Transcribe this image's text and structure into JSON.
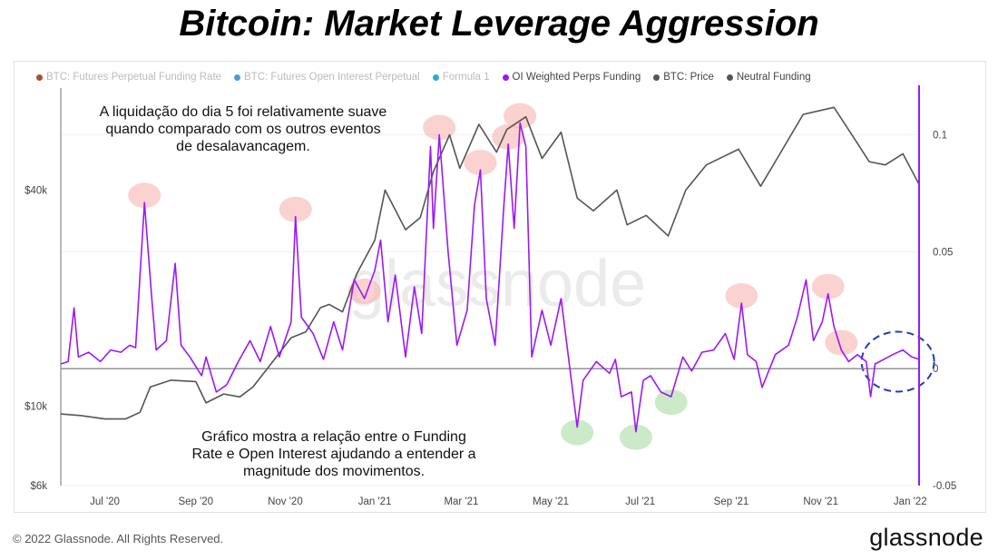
{
  "title": "Bitcoin: Market Leverage Aggression",
  "footer": "© 2022 Glassnode. All Rights Reserved.",
  "brand": "glassnode",
  "watermark": "glassnode",
  "legend": [
    {
      "label": "BTC: Futures Perpetual Funding Rate",
      "color": "#a0522d",
      "dim": true
    },
    {
      "label": "BTC: Futures Open Interest Perpetual",
      "color": "#4a9fd0",
      "dim": true
    },
    {
      "label": "Formula 1",
      "color": "#2aa8e0",
      "dim": true
    },
    {
      "label": "OI Weighted Perps Funding",
      "color": "#9b19f5",
      "dim": false
    },
    {
      "label": "BTC: Price",
      "color": "#555555",
      "dim": false
    },
    {
      "label": "Neutral Funding",
      "color": "#555555",
      "dim": false
    }
  ],
  "annotations": {
    "top": [
      "A liquidação do dia 5 foi relativamente suave",
      "quando comparado com os outros eventos",
      "de desalavancagem."
    ],
    "bottom": [
      "Gráfico mostra a relação entre o Funding",
      "Rate e Open Interest ajudando a entender a",
      "magnitude dos movimentos."
    ]
  },
  "chart_data": {
    "type": "line",
    "x_ticks": [
      "Jul '20",
      "Sep '20",
      "Nov '20",
      "Jan '21",
      "Mar '21",
      "May '21",
      "Jul '21",
      "Sep '21",
      "Nov '21",
      "Jan '22"
    ],
    "y_left": {
      "scale": "log",
      "ticks": [
        "$6k",
        "$10k",
        "$40k"
      ],
      "tick_values": [
        6000,
        10000,
        40000
      ]
    },
    "y_right": {
      "ticks": [
        "0.1",
        "0.05",
        "0",
        "-0.05"
      ],
      "tick_values": [
        0.1,
        0.05,
        0,
        -0.05
      ],
      "range": [
        -0.05,
        0.12
      ]
    },
    "neutral_funding": 0,
    "series": [
      {
        "name": "BTC: Price",
        "color": "#555555",
        "axis": "left",
        "points": [
          [
            "2020-06-01",
            9500
          ],
          [
            "2020-06-15",
            9400
          ],
          [
            "2020-07-01",
            9200
          ],
          [
            "2020-07-15",
            9200
          ],
          [
            "2020-07-25",
            9600
          ],
          [
            "2020-08-01",
            11300
          ],
          [
            "2020-08-15",
            11800
          ],
          [
            "2020-09-01",
            11700
          ],
          [
            "2020-09-08",
            10200
          ],
          [
            "2020-09-20",
            10800
          ],
          [
            "2020-10-01",
            10600
          ],
          [
            "2020-10-10",
            11300
          ],
          [
            "2020-10-21",
            12900
          ],
          [
            "2020-11-05",
            15500
          ],
          [
            "2020-11-15",
            16100
          ],
          [
            "2020-11-25",
            18800
          ],
          [
            "2020-12-01",
            19200
          ],
          [
            "2020-12-10",
            18300
          ],
          [
            "2020-12-20",
            23500
          ],
          [
            "2021-01-01",
            29000
          ],
          [
            "2021-01-08",
            40000
          ],
          [
            "2021-01-22",
            31000
          ],
          [
            "2021-02-01",
            33500
          ],
          [
            "2021-02-10",
            45000
          ],
          [
            "2021-02-21",
            57000
          ],
          [
            "2021-02-28",
            46000
          ],
          [
            "2021-03-13",
            61000
          ],
          [
            "2021-03-25",
            51000
          ],
          [
            "2021-04-01",
            59000
          ],
          [
            "2021-04-14",
            64000
          ],
          [
            "2021-04-25",
            49000
          ],
          [
            "2021-05-08",
            58000
          ],
          [
            "2021-05-19",
            38000
          ],
          [
            "2021-05-30",
            35000
          ],
          [
            "2021-06-15",
            40000
          ],
          [
            "2021-06-22",
            32000
          ],
          [
            "2021-07-05",
            34000
          ],
          [
            "2021-07-20",
            29800
          ],
          [
            "2021-08-01",
            40000
          ],
          [
            "2021-08-15",
            47000
          ],
          [
            "2021-09-06",
            52000
          ],
          [
            "2021-09-21",
            41000
          ],
          [
            "2021-10-01",
            48000
          ],
          [
            "2021-10-20",
            65000
          ],
          [
            "2021-11-10",
            68000
          ],
          [
            "2021-11-26",
            54000
          ],
          [
            "2021-12-04",
            48000
          ],
          [
            "2021-12-15",
            47000
          ],
          [
            "2021-12-27",
            50500
          ],
          [
            "2022-01-07",
            41500
          ]
        ]
      },
      {
        "name": "OI Weighted Perps Funding",
        "color": "#9b19f5",
        "axis": "right",
        "points": [
          [
            "2020-06-01",
            0.002
          ],
          [
            "2020-06-06",
            0.003
          ],
          [
            "2020-06-10",
            0.026
          ],
          [
            "2020-06-13",
            0.005
          ],
          [
            "2020-06-20",
            0.007
          ],
          [
            "2020-06-28",
            0.003
          ],
          [
            "2020-07-05",
            0.008
          ],
          [
            "2020-07-12",
            0.007
          ],
          [
            "2020-07-18",
            0.01
          ],
          [
            "2020-07-22",
            0.009
          ],
          [
            "2020-07-28",
            0.071
          ],
          [
            "2020-08-02",
            0.03
          ],
          [
            "2020-08-05",
            0.008
          ],
          [
            "2020-08-12",
            0.012
          ],
          [
            "2020-08-18",
            0.045
          ],
          [
            "2020-08-22",
            0.01
          ],
          [
            "2020-08-28",
            0.005
          ],
          [
            "2020-09-05",
            -0.003
          ],
          [
            "2020-09-08",
            0.005
          ],
          [
            "2020-09-15",
            -0.01
          ],
          [
            "2020-09-22",
            -0.007
          ],
          [
            "2020-09-30",
            0.003
          ],
          [
            "2020-10-08",
            0.012
          ],
          [
            "2020-10-15",
            0.003
          ],
          [
            "2020-10-22",
            0.018
          ],
          [
            "2020-10-28",
            0.005
          ],
          [
            "2020-11-05",
            0.02
          ],
          [
            "2020-11-08",
            0.065
          ],
          [
            "2020-11-12",
            0.022
          ],
          [
            "2020-11-20",
            0.015
          ],
          [
            "2020-11-27",
            0.004
          ],
          [
            "2020-12-04",
            0.02
          ],
          [
            "2020-12-10",
            0.008
          ],
          [
            "2020-12-18",
            0.038
          ],
          [
            "2020-12-25",
            0.03
          ],
          [
            "2021-01-01",
            0.042
          ],
          [
            "2021-01-05",
            0.055
          ],
          [
            "2021-01-10",
            0.02
          ],
          [
            "2021-01-15",
            0.04
          ],
          [
            "2021-01-22",
            0.005
          ],
          [
            "2021-01-28",
            0.035
          ],
          [
            "2021-02-02",
            0.015
          ],
          [
            "2021-02-08",
            0.095
          ],
          [
            "2021-02-10",
            0.06
          ],
          [
            "2021-02-14",
            0.1
          ],
          [
            "2021-02-20",
            0.05
          ],
          [
            "2021-02-26",
            0.01
          ],
          [
            "2021-03-05",
            0.025
          ],
          [
            "2021-03-10",
            0.07
          ],
          [
            "2021-03-14",
            0.085
          ],
          [
            "2021-03-18",
            0.03
          ],
          [
            "2021-03-24",
            0.01
          ],
          [
            "2021-03-30",
            0.07
          ],
          [
            "2021-04-02",
            0.096
          ],
          [
            "2021-04-06",
            0.06
          ],
          [
            "2021-04-10",
            0.105
          ],
          [
            "2021-04-14",
            0.095
          ],
          [
            "2021-04-18",
            0.005
          ],
          [
            "2021-04-25",
            0.025
          ],
          [
            "2021-05-01",
            0.01
          ],
          [
            "2021-05-08",
            0.03
          ],
          [
            "2021-05-12",
            0.01
          ],
          [
            "2021-05-19",
            -0.025
          ],
          [
            "2021-05-23",
            -0.005
          ],
          [
            "2021-06-01",
            0.003
          ],
          [
            "2021-06-10",
            -0.002
          ],
          [
            "2021-06-14",
            0.004
          ],
          [
            "2021-06-18",
            -0.012
          ],
          [
            "2021-06-25",
            -0.01
          ],
          [
            "2021-06-28",
            -0.027
          ],
          [
            "2021-07-03",
            -0.005
          ],
          [
            "2021-07-08",
            -0.003
          ],
          [
            "2021-07-15",
            -0.01
          ],
          [
            "2021-07-22",
            -0.012
          ],
          [
            "2021-07-30",
            0.005
          ],
          [
            "2021-08-05",
            -0.001
          ],
          [
            "2021-08-12",
            0.007
          ],
          [
            "2021-08-20",
            0.008
          ],
          [
            "2021-08-28",
            0.015
          ],
          [
            "2021-09-03",
            0.004
          ],
          [
            "2021-09-08",
            0.028
          ],
          [
            "2021-09-12",
            0.006
          ],
          [
            "2021-09-18",
            0.003
          ],
          [
            "2021-09-22",
            -0.008
          ],
          [
            "2021-10-01",
            0.006
          ],
          [
            "2021-10-10",
            0.01
          ],
          [
            "2021-10-16",
            0.022
          ],
          [
            "2021-10-22",
            0.038
          ],
          [
            "2021-10-27",
            0.012
          ],
          [
            "2021-11-02",
            0.02
          ],
          [
            "2021-11-06",
            0.032
          ],
          [
            "2021-11-10",
            0.018
          ],
          [
            "2021-11-15",
            0.008
          ],
          [
            "2021-11-20",
            0.003
          ],
          [
            "2021-11-26",
            0.006
          ],
          [
            "2021-12-02",
            0.003
          ],
          [
            "2021-12-05",
            -0.012
          ],
          [
            "2021-12-08",
            0.002
          ],
          [
            "2021-12-14",
            0.004
          ],
          [
            "2021-12-20",
            0.006
          ],
          [
            "2021-12-27",
            0.008
          ],
          [
            "2022-01-02",
            0.005
          ],
          [
            "2022-01-07",
            0.004
          ]
        ]
      }
    ],
    "highlights": {
      "peaks": [
        "2020-07-28",
        "2020-11-08",
        "2020-12-25",
        "2021-02-14",
        "2021-03-14",
        "2021-04-02",
        "2021-04-10",
        "2021-09-08",
        "2021-11-06",
        "2021-11-15"
      ],
      "troughs": [
        "2021-05-19",
        "2021-06-28",
        "2021-07-22"
      ],
      "circled_period": "2021-12-05"
    }
  }
}
